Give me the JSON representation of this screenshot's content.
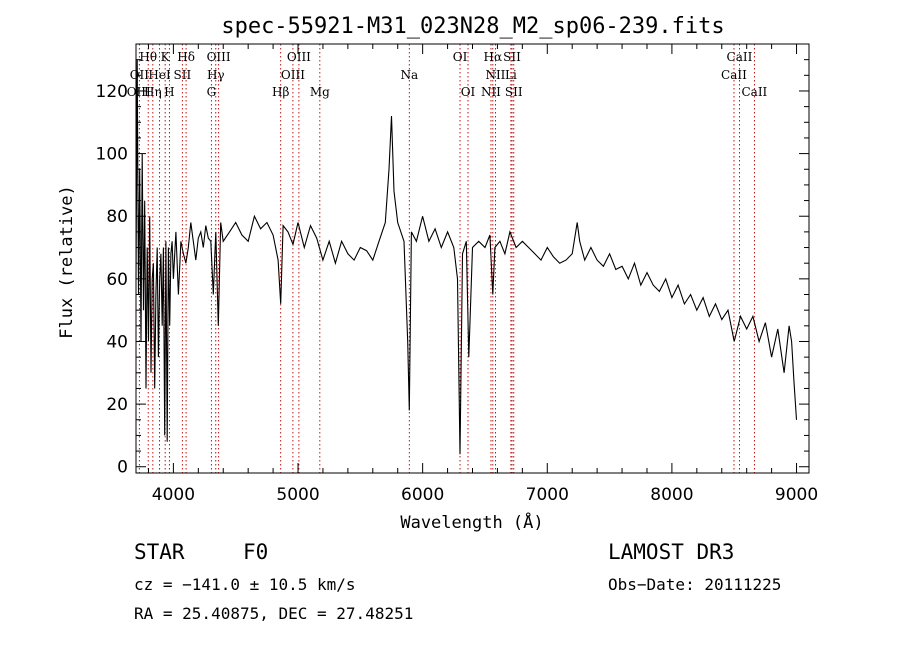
{
  "chart_data": {
    "type": "line",
    "title": "spec-55921-M31_023N28_M2_sp06-239.fits",
    "xlabel": "Wavelength (Å)",
    "ylabel": "Flux (relative)",
    "xlim": [
      3700,
      9100
    ],
    "ylim": [
      -2,
      135
    ],
    "xticks": [
      4000,
      5000,
      6000,
      7000,
      8000,
      9000
    ],
    "yticks": [
      0,
      20,
      40,
      60,
      80,
      100,
      120
    ],
    "spectrum": {
      "x": [
        3700,
        3710,
        3720,
        3730,
        3740,
        3750,
        3760,
        3770,
        3780,
        3790,
        3800,
        3810,
        3820,
        3830,
        3840,
        3850,
        3860,
        3870,
        3880,
        3890,
        3900,
        3910,
        3920,
        3930,
        3940,
        3950,
        3960,
        3970,
        3980,
        3990,
        4000,
        4020,
        4040,
        4060,
        4080,
        4100,
        4120,
        4140,
        4160,
        4180,
        4200,
        4220,
        4240,
        4260,
        4280,
        4300,
        4320,
        4340,
        4360,
        4380,
        4400,
        4450,
        4500,
        4550,
        4600,
        4650,
        4700,
        4750,
        4800,
        4840,
        4861,
        4880,
        4920,
        4960,
        5000,
        5050,
        5100,
        5150,
        5200,
        5250,
        5300,
        5350,
        5400,
        5450,
        5500,
        5550,
        5600,
        5650,
        5700,
        5730,
        5750,
        5770,
        5800,
        5850,
        5880,
        5893,
        5910,
        5950,
        6000,
        6050,
        6100,
        6150,
        6200,
        6250,
        6280,
        6300,
        6320,
        6350,
        6370,
        6400,
        6450,
        6500,
        6540,
        6563,
        6580,
        6620,
        6660,
        6700,
        6750,
        6800,
        6850,
        6900,
        6950,
        7000,
        7050,
        7100,
        7150,
        7200,
        7240,
        7260,
        7300,
        7350,
        7400,
        7450,
        7500,
        7550,
        7600,
        7650,
        7700,
        7750,
        7800,
        7850,
        7900,
        7950,
        8000,
        8050,
        8100,
        8150,
        8200,
        8250,
        8300,
        8350,
        8400,
        8450,
        8500,
        8550,
        8600,
        8650,
        8700,
        8750,
        8800,
        8850,
        8900,
        8940,
        8960,
        8980,
        9000
      ],
      "y": [
        60,
        130,
        55,
        95,
        40,
        100,
        50,
        85,
        25,
        70,
        40,
        80,
        30,
        60,
        65,
        25,
        55,
        70,
        35,
        60,
        68,
        45,
        70,
        10,
        72,
        8,
        70,
        45,
        68,
        72,
        60,
        75,
        55,
        72,
        68,
        65,
        70,
        78,
        72,
        66,
        73,
        75,
        70,
        77,
        73,
        72,
        55,
        75,
        45,
        78,
        72,
        75,
        78,
        74,
        72,
        80,
        76,
        78,
        74,
        66,
        52,
        77,
        75,
        71,
        78,
        70,
        77,
        73,
        66,
        72,
        65,
        72,
        68,
        66,
        70,
        69,
        66,
        72,
        78,
        95,
        112,
        88,
        78,
        72,
        40,
        18,
        75,
        72,
        80,
        72,
        76,
        70,
        75,
        70,
        60,
        4,
        68,
        72,
        35,
        70,
        72,
        70,
        74,
        55,
        70,
        72,
        68,
        75,
        70,
        72,
        70,
        68,
        66,
        70,
        67,
        65,
        66,
        68,
        78,
        72,
        66,
        70,
        66,
        64,
        68,
        63,
        64,
        60,
        65,
        58,
        62,
        58,
        56,
        60,
        54,
        58,
        52,
        55,
        50,
        54,
        48,
        52,
        47,
        50,
        40,
        48,
        44,
        48,
        40,
        46,
        35,
        44,
        30,
        45,
        40,
        27,
        15
      ]
    },
    "spectral_lines": [
      {
        "label": "Hθ",
        "wavelength": 3798,
        "row": 0
      },
      {
        "label": "OII",
        "wavelength": 3727,
        "row": 1
      },
      {
        "label": "OIII",
        "wavelength": 3722,
        "row": 2
      },
      {
        "label": "Hη",
        "wavelength": 3835,
        "row": 2
      },
      {
        "label": "K",
        "wavelength": 3934,
        "row": 0
      },
      {
        "label": "HeI",
        "wavelength": 3889,
        "row": 1
      },
      {
        "label": "H",
        "wavelength": 3968,
        "row": 2
      },
      {
        "label": "Hδ",
        "wavelength": 4102,
        "row": 0
      },
      {
        "label": "SII",
        "wavelength": 4072,
        "row": 1
      },
      {
        "label": "OIII",
        "wavelength": 4363,
        "row": 0
      },
      {
        "label": "Hγ",
        "wavelength": 4340,
        "row": 1
      },
      {
        "label": "G",
        "wavelength": 4305,
        "row": 2
      },
      {
        "label": "Hβ",
        "wavelength": 4861,
        "row": 2
      },
      {
        "label": "OIII",
        "wavelength": 5007,
        "row": 0
      },
      {
        "label": "OIII",
        "wavelength": 4959,
        "row": 1
      },
      {
        "label": "Mg",
        "wavelength": 5175,
        "row": 2
      },
      {
        "label": "Na",
        "wavelength": 5893,
        "row": 1
      },
      {
        "label": "OI",
        "wavelength": 6300,
        "row": 0
      },
      {
        "label": "OI",
        "wavelength": 6364,
        "row": 2
      },
      {
        "label": "Hα",
        "wavelength": 6563,
        "row": 0
      },
      {
        "label": "NII",
        "wavelength": 6584,
        "row": 1
      },
      {
        "label": "NII",
        "wavelength": 6548,
        "row": 2
      },
      {
        "label": "SII",
        "wavelength": 6717,
        "row": 0
      },
      {
        "label": "Li",
        "wavelength": 6708,
        "row": 1
      },
      {
        "label": "SII",
        "wavelength": 6731,
        "row": 2
      },
      {
        "label": "CaII",
        "wavelength": 8542,
        "row": 0
      },
      {
        "label": "CaII",
        "wavelength": 8498,
        "row": 1
      },
      {
        "label": "CaII",
        "wavelength": 8662,
        "row": 2
      }
    ]
  },
  "info": {
    "object_class": "STAR",
    "subclass": "F0",
    "survey": "LAMOST DR3",
    "redshift": "cz = −141.0 ± 10.5 km/s",
    "obs_date": "Obs−Date: 20111225",
    "coordinates": "RA =  25.40875, DEC =  27.48251"
  },
  "colors": {
    "spectrum": "#000000",
    "line_marker": "#b00000"
  }
}
